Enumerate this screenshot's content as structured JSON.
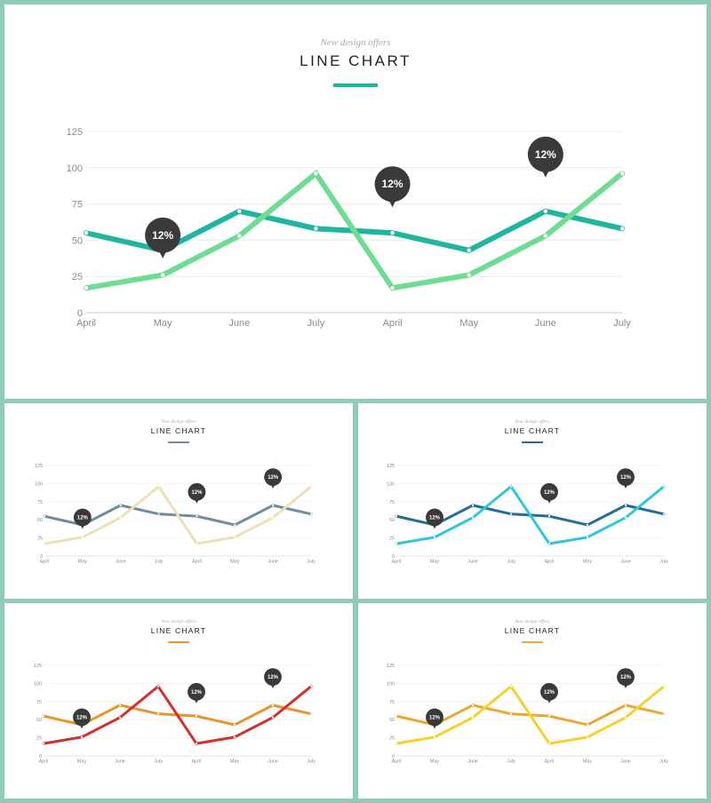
{
  "header": {
    "subtitle": "New design offers",
    "title": "LINE CHART"
  },
  "callout_label": "12%",
  "chart_data": [
    {
      "type": "line",
      "categories": [
        "April",
        "May",
        "June",
        "July",
        "April",
        "May",
        "June",
        "July"
      ],
      "ylim": [
        0,
        125
      ],
      "yticks": [
        0,
        25,
        50,
        75,
        100,
        125
      ],
      "grid": true,
      "series": [
        {
          "values": [
            55,
            43,
            70,
            58,
            55,
            43,
            70,
            58
          ],
          "color": "#1fb5a0"
        },
        {
          "values": [
            17,
            26,
            53,
            96,
            17,
            26,
            53,
            96
          ],
          "color": "#6edc92"
        }
      ],
      "callouts": [
        {
          "index": 1,
          "label": "12%"
        },
        {
          "index": 4,
          "label": "12%"
        },
        {
          "index": 6,
          "label": "12%"
        }
      ]
    },
    {
      "type": "line",
      "categories": [
        "April",
        "May",
        "June",
        "July",
        "April",
        "May",
        "June",
        "July"
      ],
      "ylim": [
        0,
        125
      ],
      "yticks": [
        0,
        25,
        50,
        75,
        100,
        125
      ],
      "grid": true,
      "series": [
        {
          "values": [
            55,
            43,
            70,
            58,
            55,
            43,
            70,
            58
          ],
          "color": "#6f8e9b"
        },
        {
          "values": [
            17,
            26,
            53,
            96,
            17,
            26,
            53,
            96
          ],
          "color": "#eddfb6"
        }
      ],
      "callouts": [
        {
          "index": 1,
          "label": "12%"
        },
        {
          "index": 4,
          "label": "12%"
        },
        {
          "index": 6,
          "label": "12%"
        }
      ]
    },
    {
      "type": "line",
      "categories": [
        "April",
        "May",
        "June",
        "July",
        "April",
        "May",
        "June",
        "July"
      ],
      "ylim": [
        0,
        125
      ],
      "yticks": [
        0,
        25,
        50,
        75,
        100,
        125
      ],
      "grid": true,
      "series": [
        {
          "values": [
            55,
            43,
            70,
            58,
            55,
            43,
            70,
            58
          ],
          "color": "#236e95"
        },
        {
          "values": [
            17,
            26,
            53,
            96,
            17,
            26,
            53,
            96
          ],
          "color": "#2ec7d9"
        }
      ],
      "callouts": [
        {
          "index": 1,
          "label": "12%"
        },
        {
          "index": 4,
          "label": "12%"
        },
        {
          "index": 6,
          "label": "12%"
        }
      ]
    },
    {
      "type": "line",
      "categories": [
        "April",
        "May",
        "June",
        "July",
        "April",
        "May",
        "June",
        "July"
      ],
      "ylim": [
        0,
        125
      ],
      "yticks": [
        0,
        25,
        50,
        75,
        100,
        125
      ],
      "grid": true,
      "series": [
        {
          "values": [
            55,
            43,
            70,
            58,
            55,
            43,
            70,
            58
          ],
          "color": "#e8952c"
        },
        {
          "values": [
            17,
            26,
            53,
            96,
            17,
            26,
            53,
            96
          ],
          "color": "#d3302c"
        }
      ],
      "callouts": [
        {
          "index": 1,
          "label": "12%"
        },
        {
          "index": 4,
          "label": "12%"
        },
        {
          "index": 6,
          "label": "12%"
        }
      ]
    },
    {
      "type": "line",
      "categories": [
        "April",
        "May",
        "June",
        "July",
        "April",
        "May",
        "June",
        "July"
      ],
      "ylim": [
        0,
        125
      ],
      "yticks": [
        0,
        25,
        50,
        75,
        100,
        125
      ],
      "grid": true,
      "series": [
        {
          "values": [
            55,
            43,
            70,
            58,
            55,
            43,
            70,
            58
          ],
          "color": "#eba732"
        },
        {
          "values": [
            17,
            26,
            53,
            96,
            17,
            26,
            53,
            96
          ],
          "color": "#f5d22a"
        }
      ],
      "callouts": [
        {
          "index": 1,
          "label": "12%"
        },
        {
          "index": 4,
          "label": "12%"
        },
        {
          "index": 6,
          "label": "12%"
        }
      ]
    }
  ]
}
